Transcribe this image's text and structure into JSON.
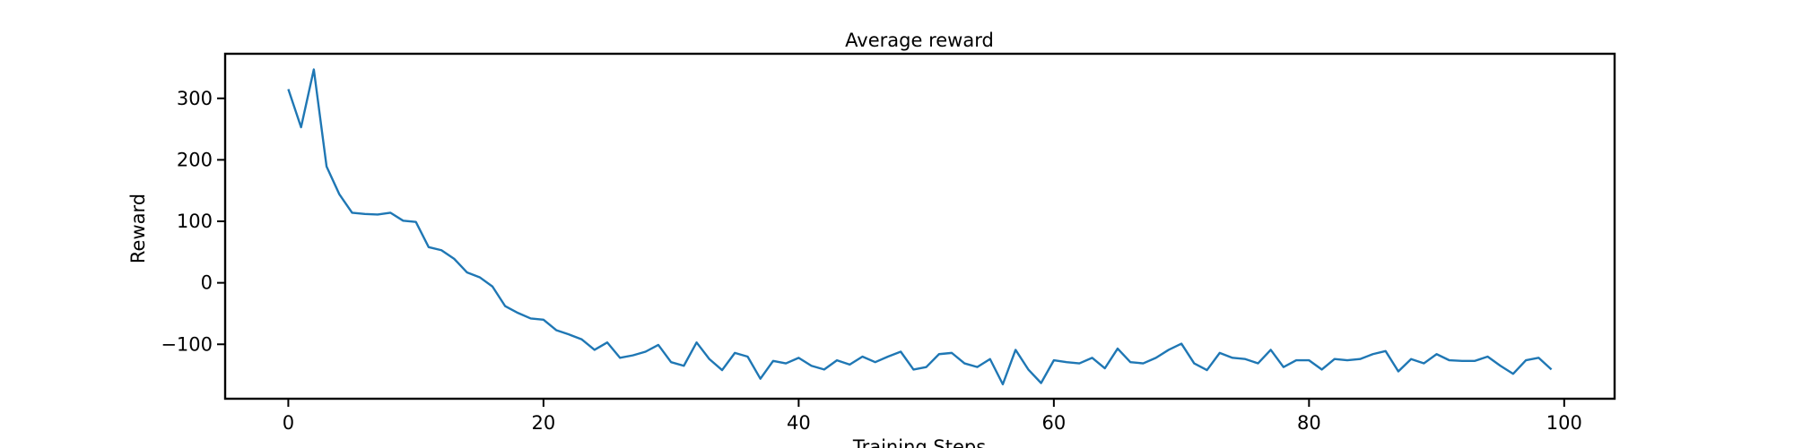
{
  "chart_data": {
    "type": "line",
    "title": "Average reward",
    "x_label": "Training Steps",
    "y_label": "Reward",
    "x": [
      0,
      1,
      2,
      3,
      4,
      5,
      6,
      7,
      8,
      9,
      10,
      11,
      12,
      13,
      14,
      15,
      16,
      17,
      18,
      19,
      20,
      21,
      22,
      23,
      24,
      25,
      26,
      27,
      28,
      29,
      30,
      31,
      32,
      33,
      34,
      35,
      36,
      37,
      38,
      39,
      40,
      41,
      42,
      43,
      44,
      45,
      46,
      47,
      48,
      49,
      50,
      51,
      52,
      53,
      54,
      55,
      56,
      57,
      58,
      59,
      60,
      61,
      62,
      63,
      64,
      65,
      66,
      67,
      68,
      69,
      70,
      71,
      72,
      73,
      74,
      75,
      76,
      77,
      78,
      79,
      80,
      81,
      82,
      83,
      84,
      85,
      86,
      87,
      88,
      89,
      90,
      91,
      92,
      93,
      94,
      95,
      96,
      97,
      98,
      99
    ],
    "series": [
      {
        "color": "#1f77b4",
        "values": [
          315,
          253,
          347,
          189,
          144,
          114,
          112,
          111,
          114,
          101,
          99,
          58,
          53,
          39,
          17,
          9,
          -6,
          -38,
          -49,
          -58,
          -60,
          -77,
          -84,
          -92,
          -109,
          -97,
          -122,
          -118,
          -112,
          -101,
          -129,
          -135,
          -97,
          -124,
          -142,
          -114,
          -120,
          -156,
          -127,
          -131,
          -122,
          -135,
          -141,
          -126,
          -133,
          -120,
          -129,
          -120,
          -112,
          -141,
          -137,
          -116,
          -114,
          -131,
          -137,
          -124,
          -165,
          -109,
          -141,
          -163,
          -126,
          -129,
          -131,
          -122,
          -139,
          -107,
          -129,
          -131,
          -122,
          -109,
          -99,
          -131,
          -142,
          -114,
          -122,
          -124,
          -131,
          -109,
          -137,
          -126,
          -126,
          -141,
          -124,
          -126,
          -124,
          -116,
          -111,
          -144,
          -124,
          -131,
          -116,
          -126,
          -127,
          -127,
          -120,
          -135,
          -148,
          -126,
          -122,
          -141
        ]
      }
    ],
    "xlim": [
      -4.95,
      103.95
    ],
    "ylim": [
      -188.5,
      372.5
    ],
    "xticks": [
      0,
      20,
      40,
      60,
      80,
      100
    ],
    "yticks": [
      {
        "value": -100,
        "label": "−100"
      },
      0,
      100,
      200,
      300
    ]
  }
}
